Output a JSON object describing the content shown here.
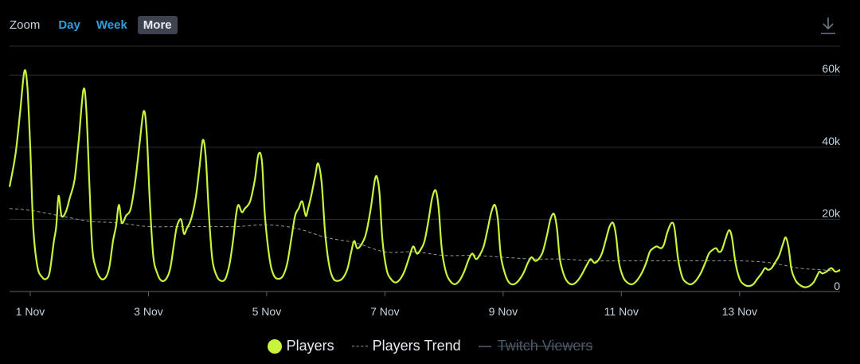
{
  "toolbar": {
    "zoom_label": "Zoom",
    "buttons": [
      {
        "label": "Day",
        "active": false
      },
      {
        "label": "Week",
        "active": false
      },
      {
        "label": "More",
        "active": true
      }
    ],
    "download_icon": "download-icon"
  },
  "colors": {
    "players": "#c8f43c",
    "trend": "#8f98a0",
    "twitch": "#3a4a5a",
    "grid": "#2a2f36",
    "axis_text": "#c6d4df",
    "accent": "#2f9fe0"
  },
  "legend": {
    "players": "Players",
    "trend": "Players Trend",
    "twitch": "Twitch Viewers"
  },
  "chart_data": {
    "type": "line",
    "xlabel": "",
    "ylabel": "",
    "x_unit": "days since 1 Nov (0 = 1 Nov 00:00)",
    "x_range": [
      -0.35,
      13.7
    ],
    "ylim": [
      0,
      68000
    ],
    "y_ticks": [
      0,
      20000,
      40000,
      60000
    ],
    "y_tick_labels": [
      "0",
      "20k",
      "40k",
      "60k"
    ],
    "x_ticks": [
      0,
      2,
      4,
      6,
      8,
      10,
      12
    ],
    "x_tick_labels": [
      "1 Nov",
      "3 Nov",
      "5 Nov",
      "7 Nov",
      "9 Nov",
      "11 Nov",
      "13 Nov"
    ],
    "grid": true,
    "legend_position": "bottom",
    "series": [
      {
        "name": "Players",
        "points": [
          [
            -0.35,
            29000
          ],
          [
            -0.25,
            38000
          ],
          [
            -0.17,
            50000
          ],
          [
            -0.1,
            61000
          ],
          [
            -0.05,
            57000
          ],
          [
            0.0,
            40000
          ],
          [
            0.05,
            18000
          ],
          [
            0.12,
            7000
          ],
          [
            0.2,
            4000
          ],
          [
            0.27,
            3500
          ],
          [
            0.33,
            5500
          ],
          [
            0.4,
            14000
          ],
          [
            0.44,
            18000
          ],
          [
            0.48,
            26500
          ],
          [
            0.53,
            21000
          ],
          [
            0.6,
            22000
          ],
          [
            0.67,
            26000
          ],
          [
            0.75,
            31000
          ],
          [
            0.82,
            42000
          ],
          [
            0.9,
            56000
          ],
          [
            0.95,
            50000
          ],
          [
            1.0,
            30000
          ],
          [
            1.05,
            12000
          ],
          [
            1.12,
            6000
          ],
          [
            1.2,
            3500
          ],
          [
            1.28,
            4000
          ],
          [
            1.34,
            7000
          ],
          [
            1.4,
            14000
          ],
          [
            1.45,
            18000
          ],
          [
            1.5,
            24000
          ],
          [
            1.55,
            19000
          ],
          [
            1.62,
            21000
          ],
          [
            1.7,
            23000
          ],
          [
            1.78,
            31000
          ],
          [
            1.85,
            41000
          ],
          [
            1.92,
            50000
          ],
          [
            1.97,
            44000
          ],
          [
            2.02,
            26000
          ],
          [
            2.08,
            10000
          ],
          [
            2.15,
            5000
          ],
          [
            2.22,
            3000
          ],
          [
            2.3,
            3500
          ],
          [
            2.37,
            6500
          ],
          [
            2.43,
            13000
          ],
          [
            2.48,
            18000
          ],
          [
            2.55,
            20000
          ],
          [
            2.6,
            16000
          ],
          [
            2.65,
            17500
          ],
          [
            2.72,
            20000
          ],
          [
            2.8,
            26000
          ],
          [
            2.86,
            34000
          ],
          [
            2.92,
            42000
          ],
          [
            2.97,
            37000
          ],
          [
            3.02,
            22000
          ],
          [
            3.08,
            9000
          ],
          [
            3.15,
            4500
          ],
          [
            3.22,
            3000
          ],
          [
            3.3,
            3500
          ],
          [
            3.37,
            7500
          ],
          [
            3.43,
            14000
          ],
          [
            3.48,
            21000
          ],
          [
            3.52,
            24000
          ],
          [
            3.58,
            22000
          ],
          [
            3.63,
            23000
          ],
          [
            3.72,
            25000
          ],
          [
            3.8,
            31000
          ],
          [
            3.86,
            38000
          ],
          [
            3.92,
            36000
          ],
          [
            3.97,
            21000
          ],
          [
            4.05,
            9000
          ],
          [
            4.12,
            4500
          ],
          [
            4.2,
            3500
          ],
          [
            4.28,
            4500
          ],
          [
            4.35,
            8000
          ],
          [
            4.42,
            15000
          ],
          [
            4.48,
            21000
          ],
          [
            4.54,
            23000
          ],
          [
            4.6,
            25000
          ],
          [
            4.66,
            21000
          ],
          [
            4.7,
            23000
          ],
          [
            4.76,
            27000
          ],
          [
            4.82,
            32000
          ],
          [
            4.87,
            35500
          ],
          [
            4.93,
            30000
          ],
          [
            4.99,
            16000
          ],
          [
            5.06,
            7000
          ],
          [
            5.13,
            3500
          ],
          [
            5.22,
            3000
          ],
          [
            5.3,
            4000
          ],
          [
            5.37,
            6500
          ],
          [
            5.43,
            11000
          ],
          [
            5.48,
            14000
          ],
          [
            5.53,
            12000
          ],
          [
            5.6,
            13000
          ],
          [
            5.68,
            16000
          ],
          [
            5.76,
            23000
          ],
          [
            5.83,
            31000
          ],
          [
            5.87,
            31500
          ],
          [
            5.91,
            27000
          ],
          [
            5.96,
            14000
          ],
          [
            6.03,
            6000
          ],
          [
            6.1,
            3500
          ],
          [
            6.18,
            2500
          ],
          [
            6.26,
            3500
          ],
          [
            6.34,
            6000
          ],
          [
            6.42,
            10000
          ],
          [
            6.48,
            12500
          ],
          [
            6.54,
            10500
          ],
          [
            6.6,
            11500
          ],
          [
            6.67,
            14000
          ],
          [
            6.74,
            20000
          ],
          [
            6.8,
            26000
          ],
          [
            6.86,
            28000
          ],
          [
            6.91,
            23000
          ],
          [
            6.96,
            12000
          ],
          [
            7.03,
            5500
          ],
          [
            7.1,
            3000
          ],
          [
            7.18,
            2000
          ],
          [
            7.26,
            3000
          ],
          [
            7.34,
            5500
          ],
          [
            7.42,
            9000
          ],
          [
            7.48,
            10500
          ],
          [
            7.54,
            9000
          ],
          [
            7.6,
            10000
          ],
          [
            7.67,
            12500
          ],
          [
            7.74,
            17500
          ],
          [
            7.8,
            22000
          ],
          [
            7.86,
            24000
          ],
          [
            7.91,
            20000
          ],
          [
            7.96,
            10000
          ],
          [
            8.03,
            5000
          ],
          [
            8.1,
            2500
          ],
          [
            8.18,
            2000
          ],
          [
            8.26,
            3000
          ],
          [
            8.34,
            5000
          ],
          [
            8.42,
            8000
          ],
          [
            8.48,
            9500
          ],
          [
            8.54,
            8500
          ],
          [
            8.6,
            9000
          ],
          [
            8.67,
            11000
          ],
          [
            8.74,
            15500
          ],
          [
            8.8,
            20000
          ],
          [
            8.86,
            21500
          ],
          [
            8.91,
            17500
          ],
          [
            8.96,
            9000
          ],
          [
            9.03,
            4500
          ],
          [
            9.1,
            2500
          ],
          [
            9.18,
            2000
          ],
          [
            9.26,
            3000
          ],
          [
            9.34,
            5000
          ],
          [
            9.42,
            7500
          ],
          [
            9.48,
            9000
          ],
          [
            9.54,
            8000
          ],
          [
            9.6,
            8500
          ],
          [
            9.67,
            10500
          ],
          [
            9.74,
            14500
          ],
          [
            9.8,
            18000
          ],
          [
            9.86,
            19000
          ],
          [
            9.91,
            15500
          ],
          [
            9.96,
            8000
          ],
          [
            10.03,
            4000
          ],
          [
            10.1,
            2500
          ],
          [
            10.18,
            2000
          ],
          [
            10.26,
            3000
          ],
          [
            10.34,
            5000
          ],
          [
            10.42,
            8000
          ],
          [
            10.48,
            11000
          ],
          [
            10.54,
            12000
          ],
          [
            10.6,
            12500
          ],
          [
            10.67,
            12000
          ],
          [
            10.72,
            13000
          ],
          [
            10.78,
            16500
          ],
          [
            10.85,
            19000
          ],
          [
            10.9,
            17500
          ],
          [
            10.96,
            9000
          ],
          [
            11.03,
            4000
          ],
          [
            11.1,
            2500
          ],
          [
            11.18,
            2000
          ],
          [
            11.26,
            3000
          ],
          [
            11.34,
            5000
          ],
          [
            11.42,
            8000
          ],
          [
            11.48,
            10500
          ],
          [
            11.54,
            11500
          ],
          [
            11.6,
            12000
          ],
          [
            11.65,
            11000
          ],
          [
            11.7,
            11500
          ],
          [
            11.76,
            14500
          ],
          [
            11.82,
            17000
          ],
          [
            11.87,
            15000
          ],
          [
            11.93,
            8000
          ],
          [
            12.0,
            3500
          ],
          [
            12.07,
            2000
          ],
          [
            12.15,
            1500
          ],
          [
            12.23,
            2000
          ],
          [
            12.3,
            3500
          ],
          [
            12.37,
            5000
          ],
          [
            12.43,
            6500
          ],
          [
            12.48,
            6000
          ],
          [
            12.54,
            6500
          ],
          [
            12.6,
            8000
          ],
          [
            12.67,
            10000
          ],
          [
            12.73,
            13000
          ],
          [
            12.78,
            15000
          ],
          [
            12.83,
            12000
          ],
          [
            12.88,
            6000
          ],
          [
            12.95,
            3000
          ],
          [
            13.02,
            1800
          ],
          [
            13.1,
            1200
          ],
          [
            13.18,
            1500
          ],
          [
            13.25,
            2500
          ],
          [
            13.3,
            4000
          ],
          [
            13.35,
            5500
          ],
          [
            13.4,
            5000
          ],
          [
            13.47,
            5500
          ],
          [
            13.55,
            6500
          ],
          [
            13.62,
            5500
          ],
          [
            13.7,
            6000
          ]
        ]
      },
      {
        "name": "Players Trend",
        "points": [
          [
            -0.35,
            23000
          ],
          [
            0.0,
            22500
          ],
          [
            0.5,
            21000
          ],
          [
            1.0,
            19500
          ],
          [
            1.5,
            19000
          ],
          [
            2.0,
            18000
          ],
          [
            2.5,
            18000
          ],
          [
            3.0,
            18000
          ],
          [
            3.5,
            18000
          ],
          [
            4.0,
            18500
          ],
          [
            4.5,
            17500
          ],
          [
            5.0,
            15000
          ],
          [
            5.5,
            13500
          ],
          [
            6.0,
            11000
          ],
          [
            6.5,
            11000
          ],
          [
            7.0,
            10000
          ],
          [
            7.5,
            10000
          ],
          [
            8.0,
            9500
          ],
          [
            8.5,
            9000
          ],
          [
            9.0,
            9000
          ],
          [
            9.5,
            8500
          ],
          [
            10.0,
            8500
          ],
          [
            10.5,
            8500
          ],
          [
            11.0,
            8500
          ],
          [
            11.5,
            8500
          ],
          [
            12.0,
            8500
          ],
          [
            12.5,
            8000
          ],
          [
            13.0,
            6500
          ],
          [
            13.4,
            6000
          ],
          [
            13.7,
            5500
          ]
        ]
      }
    ]
  }
}
